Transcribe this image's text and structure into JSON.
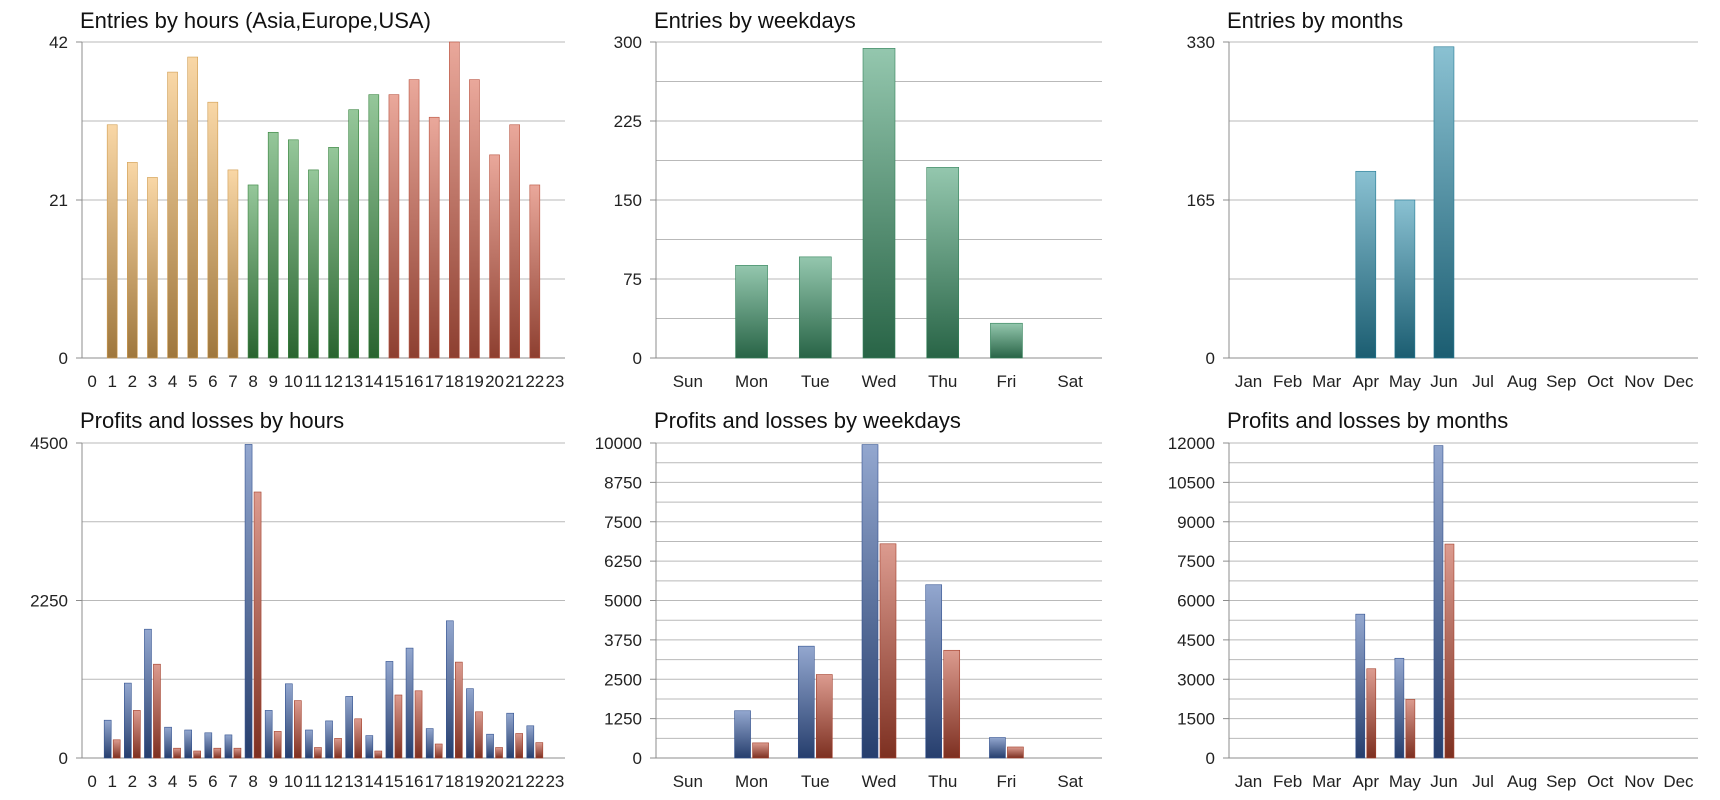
{
  "chart_data": [
    {
      "type": "bar",
      "title": "Entries by hours (Asia,Europe,USA)",
      "categories": [
        "0",
        "1",
        "2",
        "3",
        "4",
        "5",
        "6",
        "7",
        "8",
        "9",
        "10",
        "11",
        "12",
        "13",
        "14",
        "15",
        "16",
        "17",
        "18",
        "19",
        "20",
        "21",
        "22",
        "23"
      ],
      "yticks": [
        "0",
        "21",
        "42"
      ],
      "ylim": [
        0,
        42
      ],
      "grid": true,
      "legend": "none",
      "series": [
        {
          "values": [
            0,
            31,
            26,
            24,
            38,
            40,
            34,
            25,
            23,
            30,
            29,
            25,
            28,
            33,
            35,
            35,
            37,
            32,
            42,
            37,
            27,
            31,
            23,
            0
          ]
        }
      ],
      "bar_colors": [
        "#f4b75e",
        "#f4b75e",
        "#f4b75e",
        "#f4b75e",
        "#f4b75e",
        "#f4b75e",
        "#f4b75e",
        "#f4b75e",
        "#3f9a48",
        "#3f9a48",
        "#3f9a48",
        "#3f9a48",
        "#3f9a48",
        "#3f9a48",
        "#3f9a48",
        "#d9614a",
        "#d9614a",
        "#d9614a",
        "#d9614a",
        "#d9614a",
        "#d9614a",
        "#d9614a",
        "#d9614a",
        "#d9614a"
      ]
    },
    {
      "type": "bar",
      "title": "Entries by weekdays",
      "categories": [
        "Sun",
        "Mon",
        "Tue",
        "Wed",
        "Thu",
        "Fri",
        "Sat"
      ],
      "yticks": [
        "0",
        "75",
        "150",
        "225",
        "300"
      ],
      "ylim": [
        0,
        300
      ],
      "grid": true,
      "legend": "none",
      "series": [
        {
          "values": [
            0,
            88,
            96,
            294,
            181,
            33,
            0
          ]
        }
      ],
      "bar_colors": [
        "#3d9a6b"
      ]
    },
    {
      "type": "bar",
      "title": "Entries by months",
      "categories": [
        "Jan",
        "Feb",
        "Mar",
        "Apr",
        "May",
        "Jun",
        "Jul",
        "Aug",
        "Sep",
        "Oct",
        "Nov",
        "Dec"
      ],
      "yticks": [
        "0",
        "165",
        "330"
      ],
      "ylim": [
        0,
        330
      ],
      "grid": true,
      "legend": "none",
      "series": [
        {
          "values": [
            0,
            0,
            0,
            195,
            165,
            325,
            0,
            0,
            0,
            0,
            0,
            0
          ]
        }
      ],
      "bar_colors": [
        "#2a8fae"
      ]
    },
    {
      "type": "bar",
      "title": "Profits and losses by hours",
      "categories": [
        "0",
        "1",
        "2",
        "3",
        "4",
        "5",
        "6",
        "7",
        "8",
        "9",
        "10",
        "11",
        "12",
        "13",
        "14",
        "15",
        "16",
        "17",
        "18",
        "19",
        "20",
        "21",
        "22",
        "23"
      ],
      "yticks": [
        "0",
        "2250",
        "4500"
      ],
      "ylim": [
        0,
        4500
      ],
      "grid": true,
      "legend": "none",
      "series": [
        {
          "values": [
            0,
            540,
            1070,
            1840,
            440,
            400,
            360,
            330,
            4480,
            680,
            1060,
            400,
            530,
            880,
            320,
            1380,
            1570,
            420,
            1960,
            990,
            340,
            640,
            460,
            0
          ]
        },
        {
          "values": [
            0,
            260,
            680,
            1340,
            140,
            100,
            140,
            140,
            3800,
            380,
            820,
            150,
            280,
            560,
            100,
            900,
            960,
            200,
            1370,
            660,
            150,
            350,
            220,
            0
          ]
        }
      ],
      "series_colors": [
        "#3b5fa8",
        "#c04a33"
      ]
    },
    {
      "type": "bar",
      "title": "Profits and losses by weekdays",
      "categories": [
        "Sun",
        "Mon",
        "Tue",
        "Wed",
        "Thu",
        "Fri",
        "Sat"
      ],
      "yticks": [
        "0",
        "1250",
        "2500",
        "3750",
        "5000",
        "6250",
        "7500",
        "8750",
        "10000"
      ],
      "ylim": [
        0,
        10000
      ],
      "grid": true,
      "legend": "none",
      "series": [
        {
          "values": [
            0,
            1500,
            3550,
            9950,
            5500,
            650,
            0
          ]
        },
        {
          "values": [
            0,
            480,
            2650,
            6800,
            3420,
            350,
            0
          ]
        }
      ],
      "series_colors": [
        "#3b5fa8",
        "#c04a33"
      ]
    },
    {
      "type": "bar",
      "title": "Profits and losses by months",
      "categories": [
        "Jan",
        "Feb",
        "Mar",
        "Apr",
        "May",
        "Jun",
        "Jul",
        "Aug",
        "Sep",
        "Oct",
        "Nov",
        "Dec"
      ],
      "yticks": [
        "0",
        "1500",
        "3000",
        "4500",
        "6000",
        "7500",
        "9000",
        "10500",
        "12000"
      ],
      "ylim": [
        0,
        12000
      ],
      "grid": true,
      "legend": "none",
      "series": [
        {
          "values": [
            0,
            0,
            0,
            5480,
            3800,
            11900,
            0,
            0,
            0,
            0,
            0,
            0
          ]
        },
        {
          "values": [
            0,
            0,
            0,
            3400,
            2230,
            8150,
            0,
            0,
            0,
            0,
            0,
            0
          ]
        }
      ],
      "series_colors": [
        "#3b5fa8",
        "#c04a33"
      ]
    }
  ]
}
